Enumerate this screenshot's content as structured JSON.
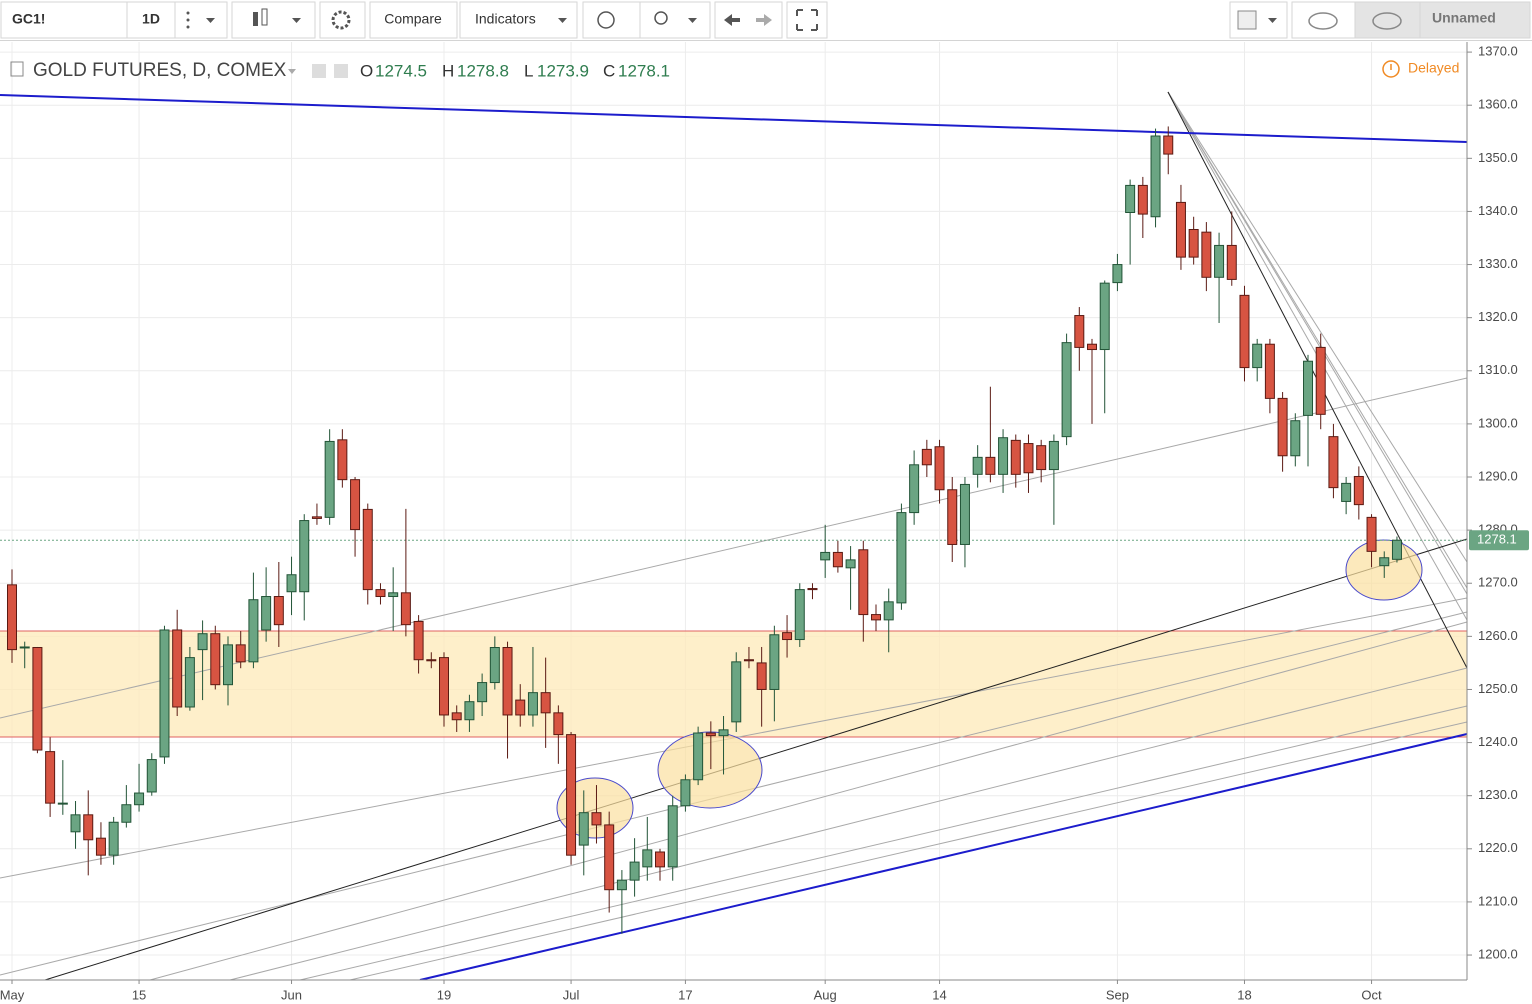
{
  "toolbar": {
    "symbol": "GC1!",
    "interval": "1D",
    "compare": "Compare",
    "indicators": "Indicators",
    "layout": "Unnamed"
  },
  "chart_data": {
    "type": "candlestick",
    "title": "GOLD FUTURES, D, COMEX",
    "status": "Delayed",
    "ohlc_labels": [
      "O",
      "H",
      "L",
      "C"
    ],
    "up_color": "#6ba583",
    "down_color": "#d75442",
    "up_border": "#225437",
    "down_border": "#5b1a13",
    "last_color": "#6ba583",
    "grid": true,
    "categories": [
      "May",
      null,
      null,
      null,
      null,
      null,
      null,
      null,
      null,
      null,
      "15",
      null,
      null,
      null,
      null,
      null,
      null,
      null,
      null,
      null,
      null,
      null,
      "Jun",
      null,
      null,
      null,
      null,
      null,
      null,
      null,
      null,
      null,
      null,
      null,
      "19",
      null,
      null,
      null,
      null,
      null,
      null,
      null,
      null,
      null,
      "Jul",
      null,
      null,
      null,
      null,
      null,
      null,
      null,
      null,
      "17",
      null,
      null,
      null,
      null,
      null,
      null,
      null,
      null,
      null,
      null,
      "Aug",
      null,
      null,
      null,
      null,
      null,
      null,
      null,
      null,
      "14",
      null,
      null,
      null,
      null,
      null,
      null,
      null,
      null,
      null,
      null,
      null,
      null,
      null,
      "Sep",
      null,
      null,
      null,
      null,
      null,
      null,
      null,
      null,
      null,
      "18",
      null,
      null,
      null,
      null,
      null,
      null,
      null,
      null,
      null,
      "Oct",
      null,
      null
    ],
    "open": [
      1269.7,
      1258,
      1257.9,
      1238.3,
      1228.6,
      1223.2,
      1226.4,
      1222,
      1218.8,
      1225,
      1228.3,
      1230.7,
      1237.3,
      1261.2,
      1246.7,
      1257.5,
      1260.5,
      1250.9,
      1258.4,
      1255.2,
      1261.2,
      1267.5,
      1268.4,
      1268.4,
      1282.5,
      1282.4,
      1297,
      1289.5,
      1283.9,
      1268.8,
      1267.5,
      1268.2,
      1262.8,
      1255.6,
      1256,
      1245.6,
      1244.3,
      1247.7,
      1251.3,
      1257.9,
      1248,
      1245.2,
      1249.4,
      1245.6,
      1241.5,
      1220.7,
      1226.8,
      1224.5,
      1212.3,
      1214.1,
      1216.6,
      1219.4,
      1216.6,
      1228.1,
      1233,
      1241.8,
      1241.3,
      1243.9,
      1255.6,
      1255,
      1250,
      1260.7,
      1259.4,
      1269,
      1274.4,
      1275.8,
      1272.9,
      1276.3,
      1264.1,
      1263.1,
      1266.3,
      1283.3,
      1295.2,
      1295.7,
      1287.6,
      1277.3,
      1290.5,
      1293.7,
      1290.5,
      1296.9,
      1296.3,
      1295.9,
      1291.4,
      1297.6,
      1320.4,
      1315,
      1314,
      1326.6,
      1339.8,
      1344.9,
      1339,
      1354.2,
      1341.7,
      1336.6,
      1336.1,
      1327.6,
      1333.6,
      1324.2,
      1310.6,
      1315,
      1304.8,
      1294,
      1301.6,
      1314.4,
      1297.6,
      1285.4,
      1290.1,
      1282.4,
      1273.3,
      1274.5
    ],
    "high": [
      1272.6,
      1259,
      1258,
      1241,
      1236.7,
      1229,
      1231,
      1225,
      1226,
      1232,
      1236,
      1238,
      1262,
      1265,
      1258,
      1263,
      1262,
      1260,
      1261,
      1272,
      1273,
      1274,
      1275,
      1283,
      1285,
      1299,
      1299,
      1290,
      1285,
      1270,
      1273,
      1284,
      1264,
      1257,
      1257,
      1247,
      1249,
      1253,
      1260,
      1259,
      1251,
      1258,
      1256,
      1247,
      1242,
      1231,
      1232,
      1227,
      1216,
      1222,
      1226,
      1220,
      1230,
      1234,
      1243,
      1244,
      1245,
      1257,
      1258,
      1258,
      1262,
      1264,
      1270,
      1270,
      1281,
      1278,
      1277,
      1278,
      1266,
      1269,
      1285,
      1295,
      1297,
      1297,
      1290,
      1290,
      1296,
      1307,
      1299,
      1298,
      1298,
      1297,
      1298,
      1317,
      1322,
      1316,
      1327,
      1332,
      1346,
      1346.5,
      1355.6,
      1356,
      1345,
      1339,
      1338,
      1336,
      1340,
      1326,
      1316,
      1316,
      1306,
      1302,
      1313,
      1317,
      1300,
      1290,
      1292,
      1283,
      1276,
      1278.8
    ],
    "low": [
      1255,
      1254,
      1238,
      1226,
      1226.4,
      1220,
      1215,
      1217,
      1217,
      1224,
      1227,
      1230,
      1236,
      1245,
      1246,
      1248,
      1250,
      1247,
      1254,
      1254,
      1259,
      1258,
      1264,
      1263,
      1281,
      1281,
      1288,
      1275,
      1266,
      1266,
      1261,
      1260,
      1253,
      1254,
      1243,
      1242,
      1242,
      1245,
      1250,
      1237,
      1243,
      1243,
      1239,
      1236,
      1217,
      1215,
      1221,
      1208,
      1204,
      1211,
      1214,
      1214,
      1214,
      1227,
      1232,
      1235,
      1234,
      1242,
      1254,
      1243,
      1244,
      1256,
      1258,
      1267,
      1271,
      1272,
      1265,
      1259,
      1261,
      1257,
      1265,
      1281,
      1290,
      1285,
      1274,
      1273,
      1288,
      1289,
      1287,
      1288,
      1287,
      1289,
      1281,
      1296,
      1310,
      1300,
      1302,
      1325,
      1330,
      1335,
      1337,
      1347,
      1329,
      1330,
      1325,
      1319,
      1326,
      1308,
      1308,
      1302,
      1291,
      1292,
      1292,
      1299,
      1286,
      1283,
      1282,
      1273,
      1271,
      1273.9
    ],
    "close": [
      1257.5,
      1258,
      1238.6,
      1228.6,
      1228.6,
      1226.4,
      1221.7,
      1218.8,
      1225,
      1228.3,
      1230.5,
      1236.8,
      1261.2,
      1246.7,
      1256,
      1260.5,
      1250.9,
      1258.4,
      1255.2,
      1266.9,
      1267.5,
      1262.2,
      1271.6,
      1281.8,
      1282.2,
      1296.7,
      1289.5,
      1280.1,
      1268.8,
      1267.5,
      1268.2,
      1262.2,
      1255.6,
      1255.4,
      1245.2,
      1244.3,
      1247.7,
      1251.3,
      1257.9,
      1245.2,
      1245.2,
      1249.4,
      1245.6,
      1241.5,
      1218.8,
      1226.8,
      1224.5,
      1212.3,
      1214.1,
      1217.5,
      1219.8,
      1216.6,
      1228.1,
      1233,
      1241.8,
      1241.3,
      1242.4,
      1255.2,
      1255.4,
      1250,
      1260.3,
      1259.4,
      1268.8,
      1268.8,
      1275.8,
      1273.1,
      1274.4,
      1264.1,
      1263.1,
      1266.5,
      1283.3,
      1292.3,
      1292.3,
      1287.6,
      1277.3,
      1288.6,
      1293.7,
      1290.5,
      1297.4,
      1290.5,
      1290.8,
      1291.4,
      1296.7,
      1315.3,
      1314.4,
      1314,
      1326.5,
      1330,
      1344.9,
      1339.5,
      1354.2,
      1350.8,
      1331.4,
      1331.4,
      1327.6,
      1333.6,
      1327.2,
      1310.6,
      1315,
      1304.8,
      1294,
      1300.6,
      1311.8,
      1301.8,
      1288,
      1288.8,
      1284.8,
      1276,
      1274.8,
      1278.1
    ],
    "ylim": [
      1195.3,
      1371.9
    ],
    "yticks": [
      {
        "value": 1200,
        "label": "1200.0"
      },
      {
        "value": 1210,
        "label": "1210.0"
      },
      {
        "value": 1220,
        "label": "1220.0"
      },
      {
        "value": 1230,
        "label": "1230.0"
      },
      {
        "value": 1240,
        "label": "1240.0"
      },
      {
        "value": 1250,
        "label": "1250.0"
      },
      {
        "value": 1260,
        "label": "1260.0"
      },
      {
        "value": 1270,
        "label": "1270.0"
      },
      {
        "value": 1280,
        "label": "1280.0"
      },
      {
        "value": 1290,
        "label": "1290.0"
      },
      {
        "value": 1300,
        "label": "1300.0"
      },
      {
        "value": 1310,
        "label": "1310.0"
      },
      {
        "value": 1320,
        "label": "1320.0"
      },
      {
        "value": 1330,
        "label": "1330.0"
      },
      {
        "value": 1340,
        "label": "1340.0"
      },
      {
        "value": 1350,
        "label": "1350.0"
      },
      {
        "value": 1360,
        "label": "1360.0"
      },
      {
        "value": 1370,
        "label": "1370.0"
      }
    ]
  }
}
